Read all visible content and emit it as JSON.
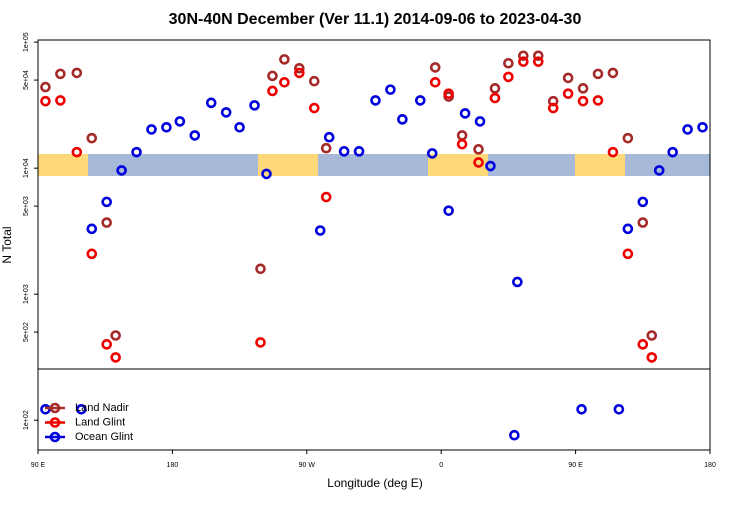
{
  "chart_data": {
    "type": "scatter",
    "title": "30N-40N December (Ver 11.1)   2014-09-06 to 2023-04-30",
    "x_label": "Longitude (deg E)",
    "y_label": "N Total",
    "ylog": true,
    "legend": "bottom-left",
    "xlim": [
      90,
      540
    ],
    "xticks": [
      {
        "value": 90,
        "label": "90 E"
      },
      {
        "value": 180,
        "label": "180"
      },
      {
        "value": 270,
        "label": "90 W"
      },
      {
        "value": 360,
        "label": "0"
      },
      {
        "value": 450,
        "label": "90 E"
      },
      {
        "value": 540,
        "label": "180"
      }
    ],
    "ylim": [
      58,
      104000
    ],
    "yticks": [
      {
        "value": 100,
        "label": "1e+02"
      },
      {
        "value": 500,
        "label": "5e+02"
      },
      {
        "value": 1000,
        "label": "1e+03"
      },
      {
        "value": 5000,
        "label": "5e+03"
      },
      {
        "value": 10000,
        "label": "1e+04"
      },
      {
        "value": 50000,
        "label": "5e+04"
      },
      {
        "value": 100000,
        "label": "1e+05"
      }
    ],
    "series": [
      {
        "name": "Land Nadir",
        "color": "#a52a2a",
        "x": [
          95,
          105,
          116,
          126,
          136,
          142,
          239,
          247,
          255,
          265,
          275,
          283,
          356,
          365,
          374,
          385,
          396,
          405,
          415,
          425,
          435,
          445,
          455,
          465,
          475,
          485,
          495,
          501
        ],
        "values": [
          44000,
          56000,
          57000,
          17300,
          3700,
          470,
          1590,
          54000,
          73000,
          62000,
          49000,
          14400,
          63000,
          37000,
          18200,
          14100,
          43000,
          68000,
          78000,
          78000,
          34000,
          52000,
          43000,
          56000,
          57000,
          17300,
          3700,
          470
        ]
      },
      {
        "name": "Land Glint",
        "color": "#ee0000",
        "x": [
          95,
          105,
          116,
          126,
          136,
          142,
          239,
          247,
          255,
          265,
          275,
          283,
          356,
          365,
          374,
          385,
          396,
          405,
          415,
          425,
          435,
          445,
          455,
          465,
          475,
          485,
          495,
          501
        ],
        "values": [
          34000,
          34500,
          13400,
          2090,
          400,
          315,
          414,
          41000,
          48000,
          57000,
          30000,
          5900,
          48000,
          39000,
          15500,
          11100,
          36000,
          53000,
          70000,
          70000,
          30000,
          39000,
          34000,
          34500,
          13400,
          2090,
          400,
          315
        ]
      },
      {
        "name": "Ocean Glint",
        "color": "#0000dd",
        "x": [
          95,
          119,
          126,
          136,
          146,
          156,
          166,
          176,
          185,
          195,
          206,
          216,
          225,
          235,
          243,
          279,
          285,
          295,
          305,
          316,
          326,
          334,
          346,
          354,
          365,
          376,
          386,
          393,
          409,
          411,
          454,
          479,
          485,
          495,
          506,
          515,
          525,
          535
        ],
        "values": [
          122,
          122,
          3300,
          5400,
          9600,
          13400,
          20300,
          21100,
          23500,
          18200,
          33000,
          27700,
          21100,
          31500,
          9000,
          3200,
          17600,
          13600,
          13600,
          34500,
          42000,
          24400,
          34500,
          13100,
          4600,
          27200,
          23500,
          10400,
          76,
          1250,
          122,
          122,
          3300,
          5400,
          9600,
          13400,
          20300,
          21100
        ]
      }
    ]
  }
}
